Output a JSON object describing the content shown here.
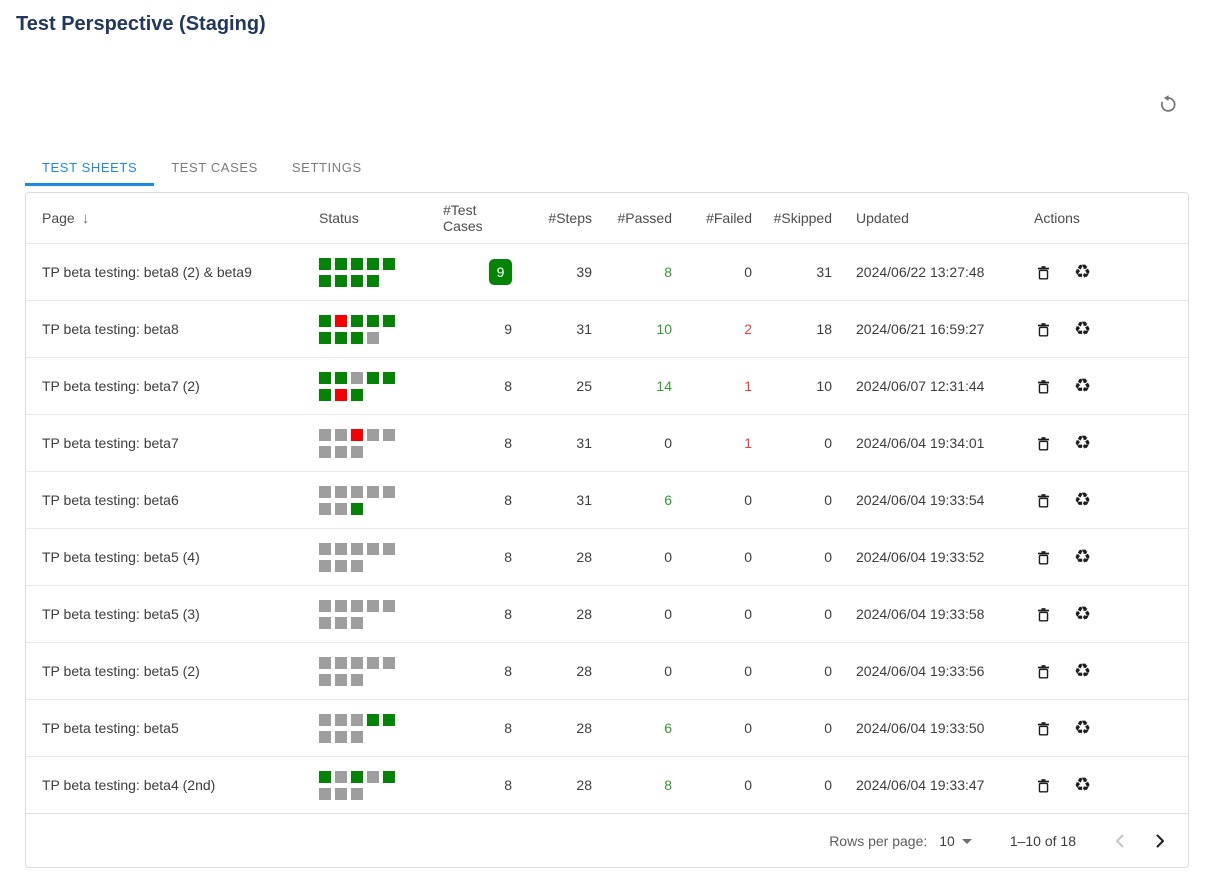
{
  "title": "Test Perspective (Staging)",
  "colors": {
    "accent": "#1e88e5",
    "title": "#21375f",
    "green": "#048404",
    "red": "#f60000",
    "gray": "#9e9e9e",
    "passed": "#2e9e2e",
    "failed": "#f43b3b"
  },
  "icons": {
    "recycle": "♻",
    "sort_desc": "↓"
  },
  "tabs": [
    {
      "label": "TEST SHEETS",
      "active": true
    },
    {
      "label": "TEST CASES",
      "active": false
    },
    {
      "label": "SETTINGS",
      "active": false
    }
  ],
  "table": {
    "columns": [
      "Page",
      "Status",
      "#Test Cases",
      "#Steps",
      "#Passed",
      "#Failed",
      "#Skipped",
      "Updated",
      "Actions"
    ],
    "sort": {
      "column": "Page",
      "direction": "desc"
    },
    "rows": [
      {
        "page": "TP beta testing: beta8 (2) & beta9",
        "status_cells": [
          "g",
          "g",
          "g",
          "g",
          "g",
          "g",
          "g",
          "g",
          "g"
        ],
        "test_cases": "9",
        "test_cases_badge": true,
        "steps": "39",
        "passed": "8",
        "failed": "0",
        "skipped": "31",
        "updated": "2024/06/22 13:27:48"
      },
      {
        "page": "TP beta testing: beta8",
        "status_cells": [
          "g",
          "r",
          "g",
          "g",
          "g",
          "g",
          "g",
          "g",
          "x"
        ],
        "test_cases": "9",
        "test_cases_badge": false,
        "steps": "31",
        "passed": "10",
        "failed": "2",
        "skipped": "18",
        "updated": "2024/06/21 16:59:27"
      },
      {
        "page": "TP beta testing: beta7 (2)",
        "status_cells": [
          "g",
          "g",
          "x",
          "g",
          "g",
          "g",
          "r",
          "g"
        ],
        "test_cases": "8",
        "test_cases_badge": false,
        "steps": "25",
        "passed": "14",
        "failed": "1",
        "skipped": "10",
        "updated": "2024/06/07 12:31:44"
      },
      {
        "page": "TP beta testing: beta7",
        "status_cells": [
          "x",
          "x",
          "r",
          "x",
          "x",
          "x",
          "x",
          "x"
        ],
        "test_cases": "8",
        "test_cases_badge": false,
        "steps": "31",
        "passed": "0",
        "failed": "1",
        "skipped": "0",
        "updated": "2024/06/04 19:34:01"
      },
      {
        "page": "TP beta testing: beta6",
        "status_cells": [
          "x",
          "x",
          "x",
          "x",
          "x",
          "x",
          "x",
          "g"
        ],
        "test_cases": "8",
        "test_cases_badge": false,
        "steps": "31",
        "passed": "6",
        "failed": "0",
        "skipped": "0",
        "updated": "2024/06/04 19:33:54"
      },
      {
        "page": "TP beta testing: beta5 (4)",
        "status_cells": [
          "x",
          "x",
          "x",
          "x",
          "x",
          "x",
          "x",
          "x"
        ],
        "test_cases": "8",
        "test_cases_badge": false,
        "steps": "28",
        "passed": "0",
        "failed": "0",
        "skipped": "0",
        "updated": "2024/06/04 19:33:52"
      },
      {
        "page": "TP beta testing: beta5 (3)",
        "status_cells": [
          "x",
          "x",
          "x",
          "x",
          "x",
          "x",
          "x",
          "x"
        ],
        "test_cases": "8",
        "test_cases_badge": false,
        "steps": "28",
        "passed": "0",
        "failed": "0",
        "skipped": "0",
        "updated": "2024/06/04 19:33:58"
      },
      {
        "page": "TP beta testing: beta5 (2)",
        "status_cells": [
          "x",
          "x",
          "x",
          "x",
          "x",
          "x",
          "x",
          "x"
        ],
        "test_cases": "8",
        "test_cases_badge": false,
        "steps": "28",
        "passed": "0",
        "failed": "0",
        "skipped": "0",
        "updated": "2024/06/04 19:33:56"
      },
      {
        "page": "TP beta testing: beta5",
        "status_cells": [
          "x",
          "x",
          "x",
          "g",
          "g",
          "x",
          "x",
          "x"
        ],
        "test_cases": "8",
        "test_cases_badge": false,
        "steps": "28",
        "passed": "6",
        "failed": "0",
        "skipped": "0",
        "updated": "2024/06/04 19:33:50"
      },
      {
        "page": "TP beta testing: beta4 (2nd)",
        "status_cells": [
          "g",
          "x",
          "g",
          "x",
          "g",
          "x",
          "x",
          "x"
        ],
        "test_cases": "8",
        "test_cases_badge": false,
        "steps": "28",
        "passed": "8",
        "failed": "0",
        "skipped": "0",
        "updated": "2024/06/04 19:33:47"
      }
    ]
  },
  "pagination": {
    "rows_per_page_label": "Rows per page:",
    "rows_per_page_value": "10",
    "range_label": "1–10 of 18"
  }
}
